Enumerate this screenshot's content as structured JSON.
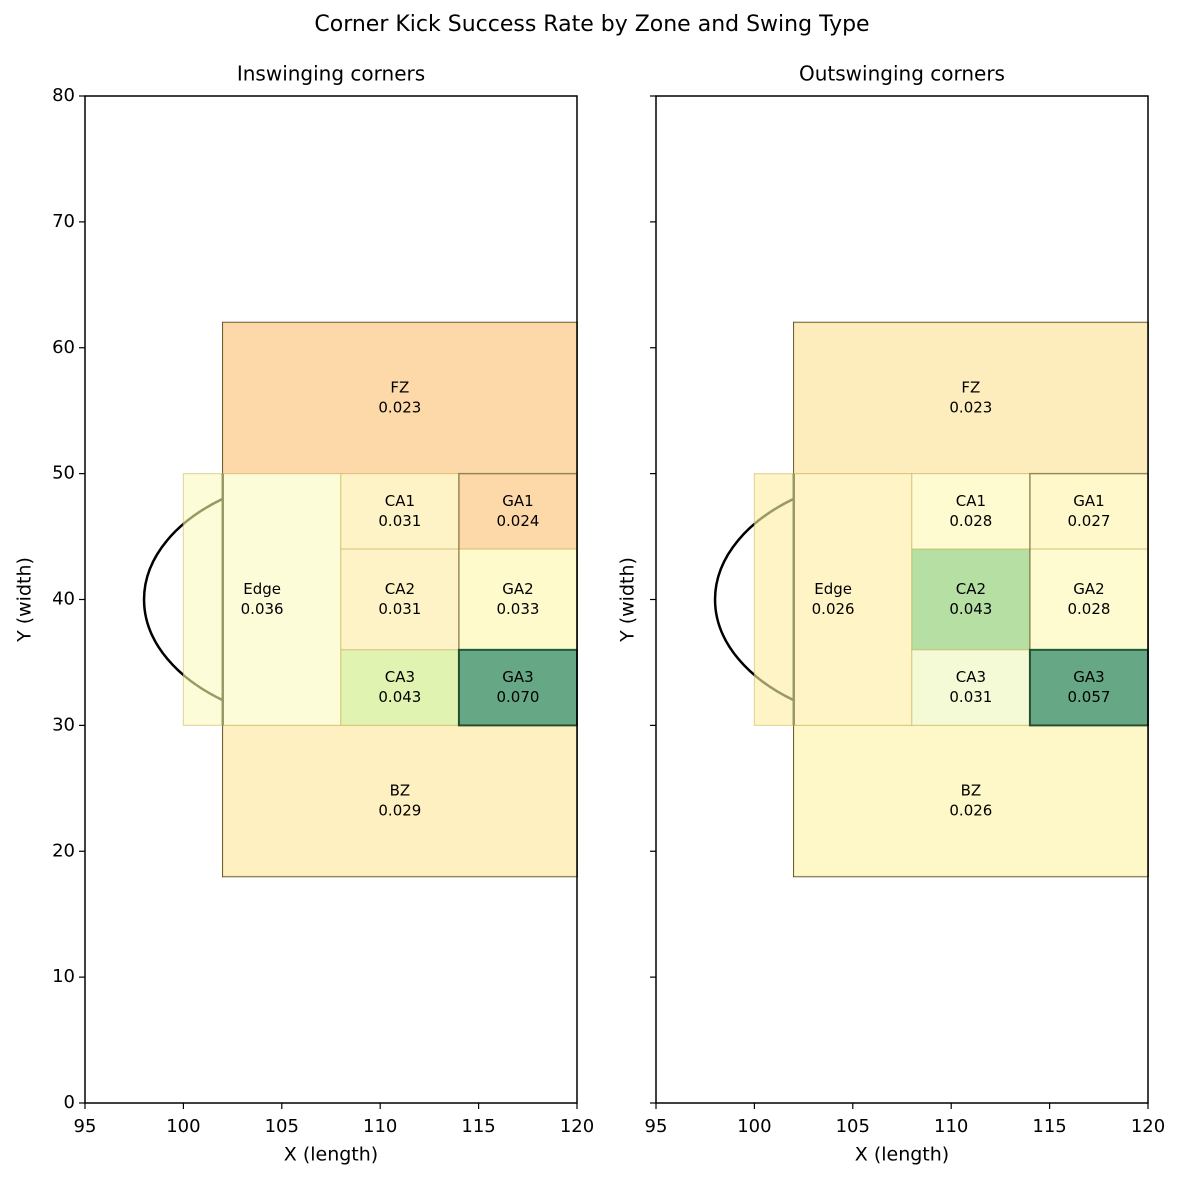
{
  "title": "Corner Kick Success Rate by Zone and Swing Type",
  "chart_data": [
    {
      "type": "zone-map",
      "title": "Inswinging corners",
      "xlabel": "X (length)",
      "ylabel": "Y (width)",
      "xlim": [
        95,
        120
      ],
      "ylim": [
        0,
        80
      ],
      "xticks": [
        95,
        100,
        105,
        110,
        115,
        120
      ],
      "yticks": [
        0,
        10,
        20,
        30,
        40,
        50,
        60,
        70,
        80
      ],
      "show_ytick_labels": true,
      "zones": [
        {
          "name": "FZ",
          "x": [
            102,
            120
          ],
          "y": [
            50,
            62
          ],
          "value": 0.023,
          "value_label": "0.023",
          "color": "#fdd9a9"
        },
        {
          "name": "BZ",
          "x": [
            102,
            120
          ],
          "y": [
            18,
            30
          ],
          "value": 0.029,
          "value_label": "0.029",
          "color": "#fef0c0"
        },
        {
          "name": "Edge",
          "x": [
            100,
            108
          ],
          "y": [
            30,
            50
          ],
          "value": 0.036,
          "value_label": "0.036",
          "color": "#fcfcd8"
        },
        {
          "name": "CA1",
          "x": [
            108,
            114
          ],
          "y": [
            44,
            50
          ],
          "value": 0.031,
          "value_label": "0.031",
          "color": "#fef3c7"
        },
        {
          "name": "CA2",
          "x": [
            108,
            114
          ],
          "y": [
            36,
            44
          ],
          "value": 0.031,
          "value_label": "0.031",
          "color": "#fef3c7"
        },
        {
          "name": "CA3",
          "x": [
            108,
            114
          ],
          "y": [
            30,
            36
          ],
          "value": 0.043,
          "value_label": "0.043",
          "color": "#e0f3b0"
        },
        {
          "name": "GA1",
          "x": [
            114,
            120
          ],
          "y": [
            44,
            50
          ],
          "value": 0.024,
          "value_label": "0.024",
          "color": "#fdd9a9"
        },
        {
          "name": "GA2",
          "x": [
            114,
            120
          ],
          "y": [
            36,
            44
          ],
          "value": 0.033,
          "value_label": "0.033",
          "color": "#fefacb"
        },
        {
          "name": "GA3",
          "x": [
            114,
            120
          ],
          "y": [
            30,
            36
          ],
          "value": 0.07,
          "value_label": "0.070",
          "color": "#66a885"
        }
      ]
    },
    {
      "type": "zone-map",
      "title": "Outswinging corners",
      "xlabel": "X (length)",
      "ylabel": "Y (width)",
      "xlim": [
        95,
        120
      ],
      "ylim": [
        0,
        80
      ],
      "xticks": [
        95,
        100,
        105,
        110,
        115,
        120
      ],
      "yticks": [
        0,
        10,
        20,
        30,
        40,
        50,
        60,
        70,
        80
      ],
      "show_ytick_labels": false,
      "zones": [
        {
          "name": "FZ",
          "x": [
            102,
            120
          ],
          "y": [
            50,
            62
          ],
          "value": 0.023,
          "value_label": "0.023",
          "color": "#fdedbd"
        },
        {
          "name": "BZ",
          "x": [
            102,
            120
          ],
          "y": [
            18,
            30
          ],
          "value": 0.026,
          "value_label": "0.026",
          "color": "#fef7c8"
        },
        {
          "name": "Edge",
          "x": [
            100,
            108
          ],
          "y": [
            30,
            50
          ],
          "value": 0.026,
          "value_label": "0.026",
          "color": "#fef4c6"
        },
        {
          "name": "CA1",
          "x": [
            108,
            114
          ],
          "y": [
            44,
            50
          ],
          "value": 0.028,
          "value_label": "0.028",
          "color": "#fefbd0"
        },
        {
          "name": "CA2",
          "x": [
            108,
            114
          ],
          "y": [
            36,
            44
          ],
          "value": 0.043,
          "value_label": "0.043",
          "color": "#b5dfa3"
        },
        {
          "name": "CA3",
          "x": [
            108,
            114
          ],
          "y": [
            30,
            36
          ],
          "value": 0.031,
          "value_label": "0.031",
          "color": "#f4fad5"
        },
        {
          "name": "GA1",
          "x": [
            114,
            120
          ],
          "y": [
            44,
            50
          ],
          "value": 0.027,
          "value_label": "0.027",
          "color": "#fef8cb"
        },
        {
          "name": "GA2",
          "x": [
            114,
            120
          ],
          "y": [
            36,
            44
          ],
          "value": 0.028,
          "value_label": "0.028",
          "color": "#fefbd0"
        },
        {
          "name": "GA3",
          "x": [
            114,
            120
          ],
          "y": [
            30,
            36
          ],
          "value": 0.057,
          "value_label": "0.057",
          "color": "#66a885"
        }
      ]
    }
  ]
}
